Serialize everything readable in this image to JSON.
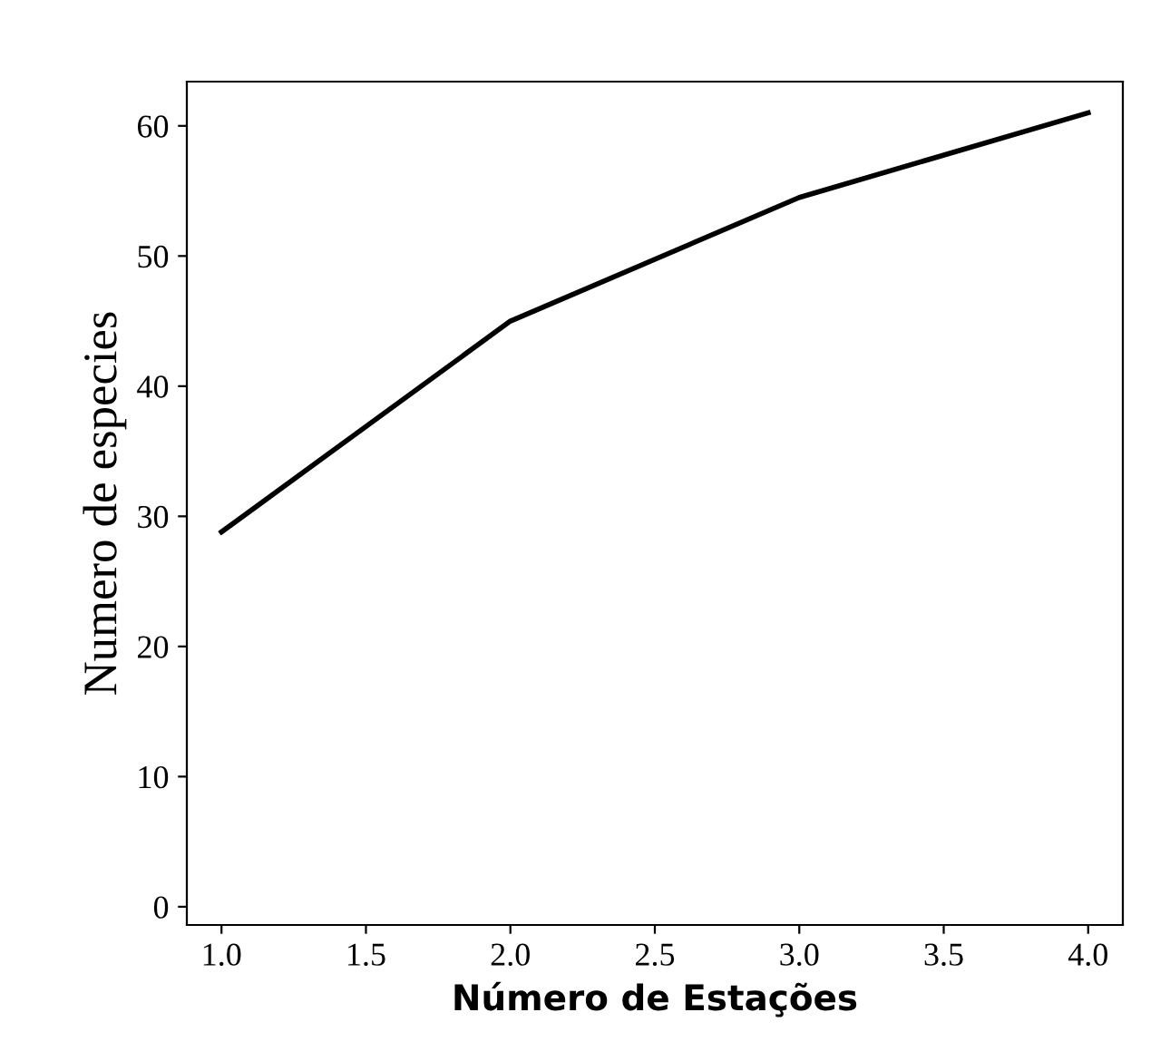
{
  "chart_data": {
    "type": "line",
    "xlabel": "Número de Estações",
    "ylabel": "Numero de especies",
    "x": [
      1.0,
      2.0,
      3.0,
      4.0
    ],
    "series": [
      {
        "color": "#000000",
        "values": [
          28.8,
          45,
          54.5,
          61
        ]
      }
    ],
    "xlim": [
      0.88,
      4.12
    ],
    "ylim": [
      -1.4,
      63.4
    ],
    "xticks": [
      {
        "value": 1.0,
        "label": "1.0"
      },
      {
        "value": 1.5,
        "label": "1.5"
      },
      {
        "value": 2.0,
        "label": "2.0"
      },
      {
        "value": 2.5,
        "label": "2.5"
      },
      {
        "value": 3.0,
        "label": "3.0"
      },
      {
        "value": 3.5,
        "label": "3.5"
      },
      {
        "value": 4.0,
        "label": "4.0"
      }
    ],
    "yticks": [
      0,
      10,
      20,
      30,
      40,
      50,
      60
    ],
    "grid": false,
    "legend": false,
    "marker": "none",
    "line_style": "solid"
  }
}
